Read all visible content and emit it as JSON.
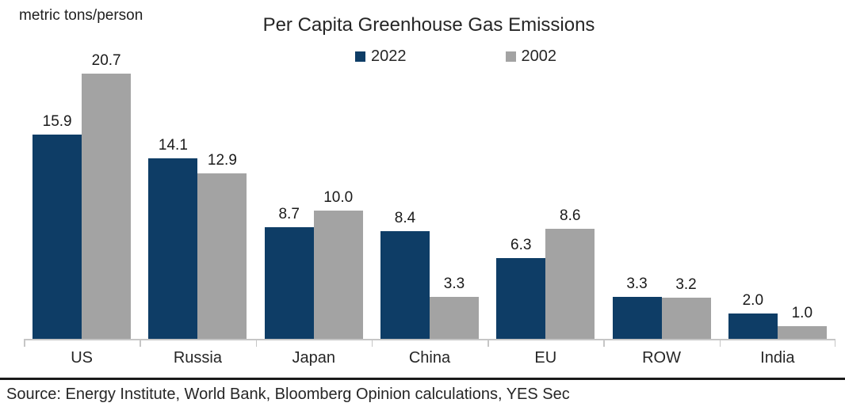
{
  "chart": {
    "title": "Per Capita Greenhouse Gas Emissions",
    "units_label": "metric tons/person",
    "source": "Source: Energy Institute, World Bank, Bloomberg Opinion calculations, YES Sec"
  },
  "chart_data": {
    "type": "bar",
    "title": "Per Capita Greenhouse Gas Emissions",
    "ylabel": "metric tons/person",
    "xlabel": "",
    "categories": [
      "US",
      "Russia",
      "Japan",
      "China",
      "EU",
      "ROW",
      "India"
    ],
    "series": [
      {
        "name": "2022",
        "color": "#0e3d66",
        "values": [
          15.9,
          14.1,
          8.7,
          8.4,
          6.3,
          3.3,
          2.0
        ]
      },
      {
        "name": "2002",
        "color": "#a3a3a3",
        "values": [
          20.7,
          12.9,
          10.0,
          3.3,
          8.6,
          3.2,
          1.0
        ]
      }
    ],
    "ylim": [
      0,
      21.3
    ],
    "grid": false,
    "value_labels_shown": true,
    "legend_position": "top",
    "axis_line_color": "#c6c6c6",
    "source": "Source: Energy Institute, World Bank, Bloomberg Opinion calculations, YES Sec"
  }
}
